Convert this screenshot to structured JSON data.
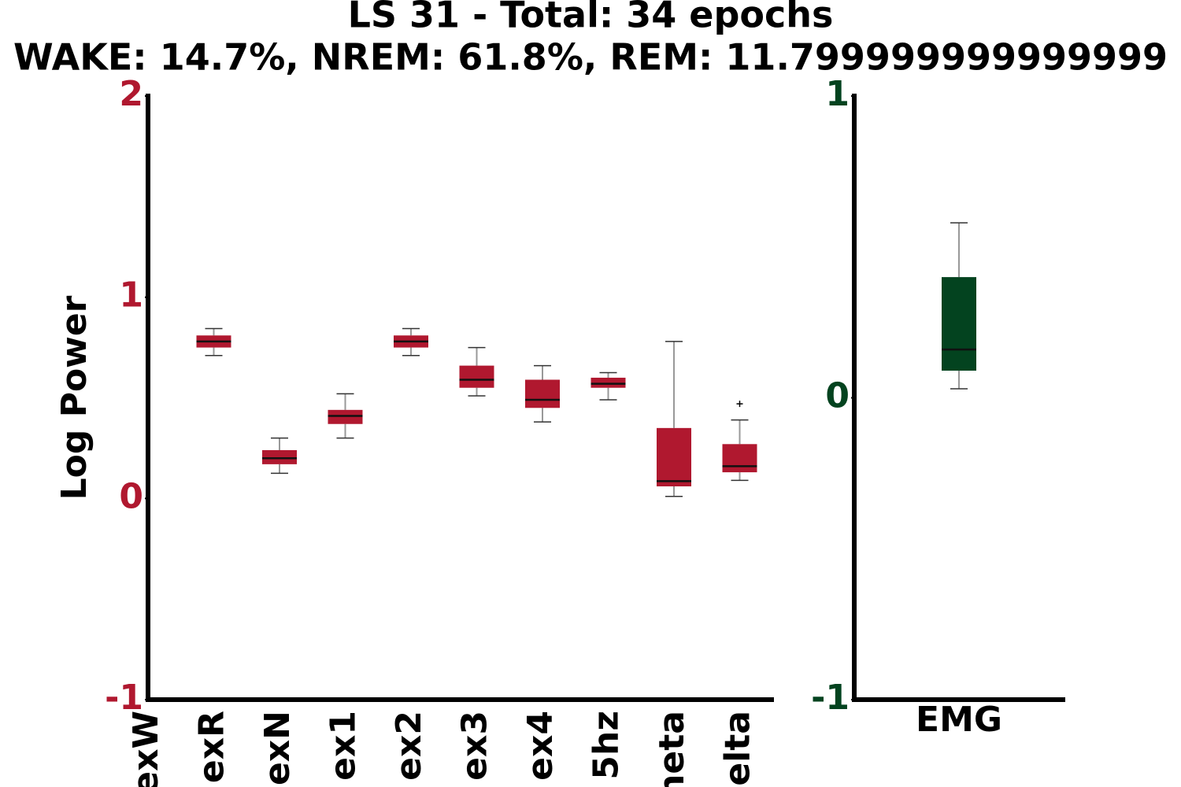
{
  "title": "LS 31 - Total: 34 epochs",
  "subtitle": "WAKE: 14.7%, NREM: 61.8%, REM: 11.799999999999999",
  "chart_data": [
    {
      "type": "box",
      "ylabel": "Log Power",
      "color": "#b0182f",
      "tick_color": "#b0182f",
      "categories": [
        "exW",
        "exR",
        "exN",
        "ex1",
        "ex2",
        "ex3",
        "ex4",
        "5hz",
        "neta",
        "elta"
      ],
      "boxes": [
        null,
        {
          "whislo": 0.71,
          "q1": 0.75,
          "med": 0.78,
          "q3": 0.81,
          "whishi": 0.844,
          "fliers": []
        },
        {
          "whislo": 0.125,
          "q1": 0.17,
          "med": 0.2,
          "q3": 0.24,
          "whishi": 0.3,
          "fliers": []
        },
        {
          "whislo": 0.3,
          "q1": 0.37,
          "med": 0.41,
          "q3": 0.44,
          "whishi": 0.52,
          "fliers": []
        },
        {
          "whislo": 0.71,
          "q1": 0.75,
          "med": 0.78,
          "q3": 0.81,
          "whishi": 0.844,
          "fliers": []
        },
        {
          "whislo": 0.51,
          "q1": 0.55,
          "med": 0.59,
          "q3": 0.66,
          "whishi": 0.75,
          "fliers": []
        },
        {
          "whislo": 0.38,
          "q1": 0.45,
          "med": 0.49,
          "q3": 0.59,
          "whishi": 0.66,
          "fliers": []
        },
        {
          "whislo": 0.49,
          "q1": 0.55,
          "med": 0.57,
          "q3": 0.6,
          "whishi": 0.625,
          "fliers": []
        },
        {
          "whislo": 0.01,
          "q1": 0.06,
          "med": 0.086,
          "q3": 0.35,
          "whishi": 0.78,
          "fliers": []
        },
        {
          "whislo": 0.09,
          "q1": 0.13,
          "med": 0.16,
          "q3": 0.27,
          "whishi": 0.39,
          "fliers": [
            0.47
          ]
        }
      ],
      "ylim": [
        -1,
        2
      ],
      "yticks": [
        -1,
        0,
        1,
        2
      ]
    },
    {
      "type": "box",
      "color": "#03431f",
      "tick_color": "#03431f",
      "categories": [
        "EMG"
      ],
      "boxes": [
        {
          "whislo": 0.03,
          "q1": 0.09,
          "med": 0.16,
          "q3": 0.4,
          "whishi": 0.58,
          "fliers": []
        }
      ],
      "ylim": [
        -1,
        1
      ],
      "yticks": [
        -1,
        0,
        1
      ]
    }
  ]
}
